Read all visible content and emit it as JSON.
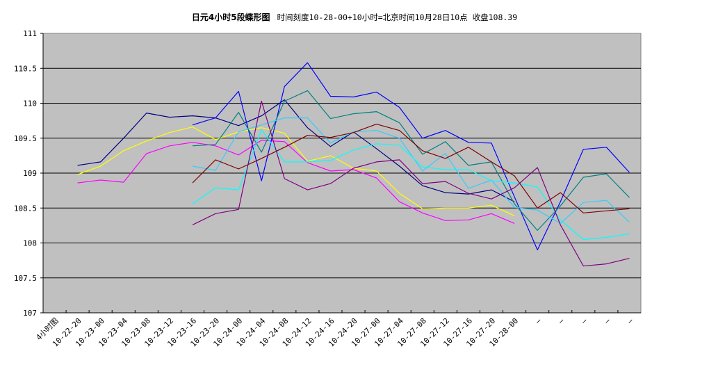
{
  "title": {
    "main": "日元4小时5段蝶形图",
    "subtitle": "时间刻度10-28-00+10小时=北京时间10月28日10点  收盘108.39"
  },
  "chart_data": {
    "type": "line",
    "title": "日元4小时5段蝶形图  时间刻度10-28-00+10小时=北京时间10月28日10点  收盘108.39",
    "xlabel": "",
    "ylabel": "",
    "ylim": [
      107,
      111
    ],
    "yticks": [
      "107",
      "107.5",
      "108",
      "108.5",
      "109",
      "109.5",
      "110",
      "110.5",
      "111"
    ],
    "grid": true,
    "legend": "none",
    "plot_background": "#C0C0C0",
    "categories": [
      "4小时图",
      "10-22-20",
      "10-23-00",
      "10-23-04",
      "10-23-08",
      "10-23-12",
      "10-23-16",
      "10-23-20",
      "10-24-00",
      "10-24-04",
      "10-24-08",
      "10-24-12",
      "10-24-16",
      "10-24-20",
      "10-27-00",
      "10-27-04",
      "10-27-08",
      "10-27-12",
      "10-27-16",
      "10-27-20",
      "10-28-00",
      "—",
      "—",
      "—",
      "—",
      "—"
    ],
    "series": [
      {
        "name": "navy",
        "color": "#000080",
        "values": [
          null,
          109.11,
          109.16,
          109.5,
          109.86,
          109.8,
          109.82,
          109.79,
          109.68,
          109.82,
          110.05,
          109.65,
          109.38,
          109.59,
          109.35,
          109.1,
          108.82,
          108.72,
          108.7,
          108.76,
          108.59,
          null,
          null,
          null,
          null,
          null
        ]
      },
      {
        "name": "yellow",
        "color": "#FFFF00",
        "values": [
          null,
          108.98,
          109.1,
          109.32,
          109.46,
          109.58,
          109.66,
          109.48,
          109.59,
          109.65,
          109.57,
          109.17,
          109.25,
          109.07,
          109.03,
          108.71,
          108.49,
          108.5,
          108.5,
          108.54,
          108.39,
          null,
          null,
          null,
          null,
          null
        ]
      },
      {
        "name": "magenta",
        "color": "#FF00FF",
        "values": [
          null,
          108.86,
          108.9,
          108.87,
          109.28,
          109.39,
          109.44,
          109.39,
          109.26,
          109.47,
          109.45,
          109.15,
          109.03,
          109.05,
          108.93,
          108.59,
          108.43,
          108.32,
          108.33,
          108.42,
          108.28,
          null,
          null,
          null,
          null,
          null
        ]
      },
      {
        "name": "blue",
        "color": "#0000FF",
        "values": [
          null,
          null,
          null,
          null,
          null,
          null,
          109.69,
          109.79,
          110.17,
          108.89,
          110.24,
          110.58,
          110.1,
          110.09,
          110.16,
          109.94,
          109.5,
          109.61,
          109.44,
          109.43,
          108.66,
          107.9,
          108.59,
          109.34,
          109.37,
          109.01
        ]
      },
      {
        "name": "teal",
        "color": "#008080",
        "values": [
          null,
          null,
          null,
          null,
          null,
          null,
          109.39,
          109.41,
          109.87,
          109.3,
          110.03,
          110.18,
          109.78,
          109.85,
          109.88,
          109.72,
          109.27,
          109.45,
          109.11,
          109.16,
          108.56,
          108.18,
          108.53,
          108.94,
          108.99,
          108.65
        ]
      },
      {
        "name": "sky-blue",
        "color": "#33CCFF",
        "values": [
          null,
          null,
          null,
          null,
          null,
          null,
          109.1,
          109.04,
          109.59,
          109.69,
          109.79,
          109.79,
          109.43,
          109.59,
          109.61,
          109.5,
          109.03,
          109.28,
          108.78,
          108.9,
          108.51,
          108.47,
          108.28,
          108.58,
          108.61,
          108.3
        ]
      },
      {
        "name": "cyan",
        "color": "#00FFFF",
        "values": [
          null,
          null,
          null,
          null,
          null,
          null,
          108.56,
          108.79,
          108.76,
          109.62,
          109.16,
          109.16,
          109.18,
          109.33,
          109.42,
          109.4,
          109.09,
          109.05,
          109.05,
          108.89,
          108.86,
          108.8,
          108.33,
          108.05,
          108.08,
          108.13
        ]
      },
      {
        "name": "maroon",
        "color": "#800000",
        "values": [
          null,
          null,
          null,
          null,
          null,
          null,
          108.86,
          109.19,
          109.06,
          109.21,
          109.37,
          109.54,
          109.51,
          109.58,
          109.7,
          109.61,
          109.32,
          109.21,
          109.37,
          109.16,
          108.96,
          108.5,
          108.72,
          108.43,
          108.46,
          108.49
        ]
      },
      {
        "name": "purple",
        "color": "#800080",
        "values": [
          null,
          null,
          null,
          null,
          null,
          null,
          108.26,
          108.42,
          108.48,
          110.03,
          108.92,
          108.76,
          108.85,
          109.07,
          109.16,
          109.19,
          108.85,
          108.88,
          108.71,
          108.63,
          108.79,
          109.08,
          108.26,
          107.67,
          107.7,
          107.78
        ]
      }
    ]
  }
}
